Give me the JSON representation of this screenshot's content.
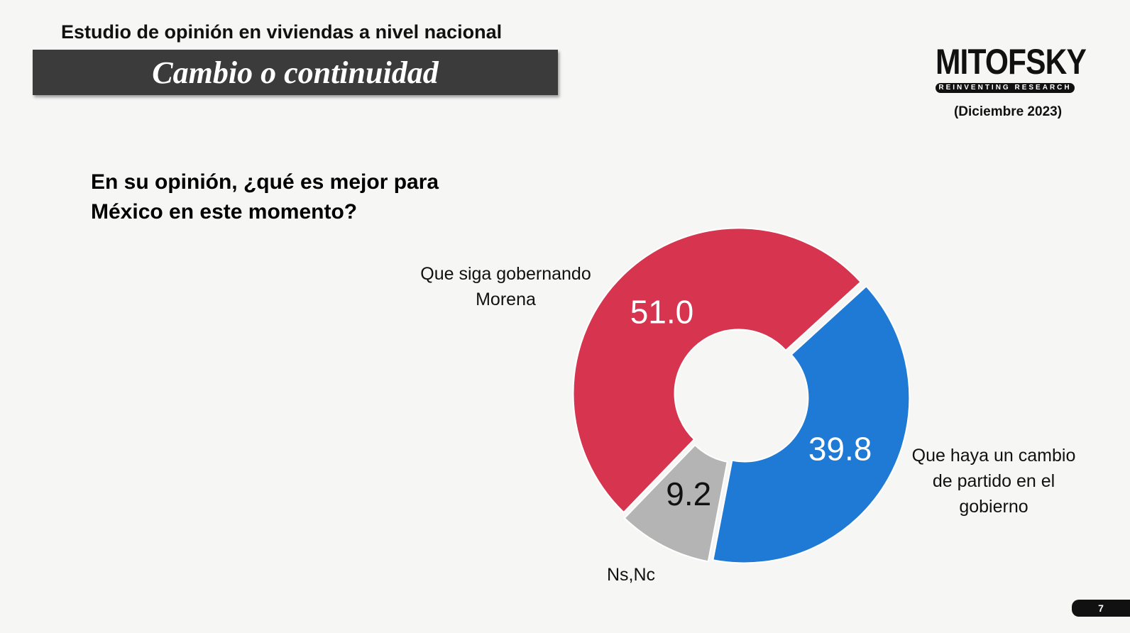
{
  "header": {
    "subtitle": "Estudio de opinión en viviendas a nivel nacional",
    "title": "Cambio o continuidad",
    "logo": "MITOFSKY",
    "logo_tagline": "REINVENTING RESEARCH",
    "date": "(Diciembre 2023)",
    "page_number": "7"
  },
  "chart_data": {
    "type": "donut",
    "title": "En su opinión, ¿qué es mejor para México en este momento?",
    "categories": [
      "Que siga gobernando Morena",
      "Que haya un cambio de partido en el gobierno",
      "Ns,Nc"
    ],
    "values": [
      51.0,
      39.8,
      9.2
    ],
    "value_labels": [
      "51.0",
      "39.8",
      "9.2"
    ],
    "colors": [
      "#d6344f",
      "#1f7ad6",
      "#b4b4b4"
    ]
  }
}
